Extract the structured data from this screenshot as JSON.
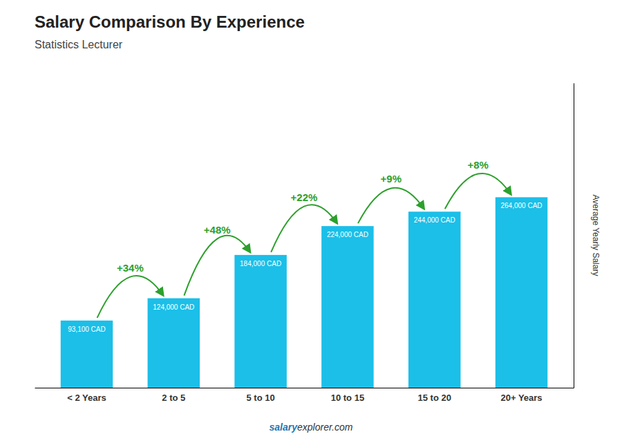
{
  "chart_data": {
    "type": "bar",
    "title": "Salary Comparison By Experience",
    "subtitle": "Statistics Lecturer",
    "y_label": "Average Yearly Salary",
    "categories": [
      "< 2 Years",
      "2 to 5",
      "5 to 10",
      "10 to 15",
      "15 to 20",
      "20+ Years"
    ],
    "values": [
      93100,
      124000,
      184000,
      224000,
      244000,
      264000
    ],
    "value_labels": [
      "93,100 CAD",
      "124,000 CAD",
      "184,000 CAD",
      "224,000 CAD",
      "244,000 CAD",
      "264,000 CAD"
    ],
    "data_labels": true,
    "color": "#1BBFE8",
    "ylim": [
      0,
      422400
    ],
    "tick_labels": "x",
    "grid": false,
    "annotations": [
      "+34%",
      "+48%",
      "+22%",
      "+9%",
      "+8%"
    ],
    "footer": [
      "salary",
      "explorer.com"
    ]
  }
}
